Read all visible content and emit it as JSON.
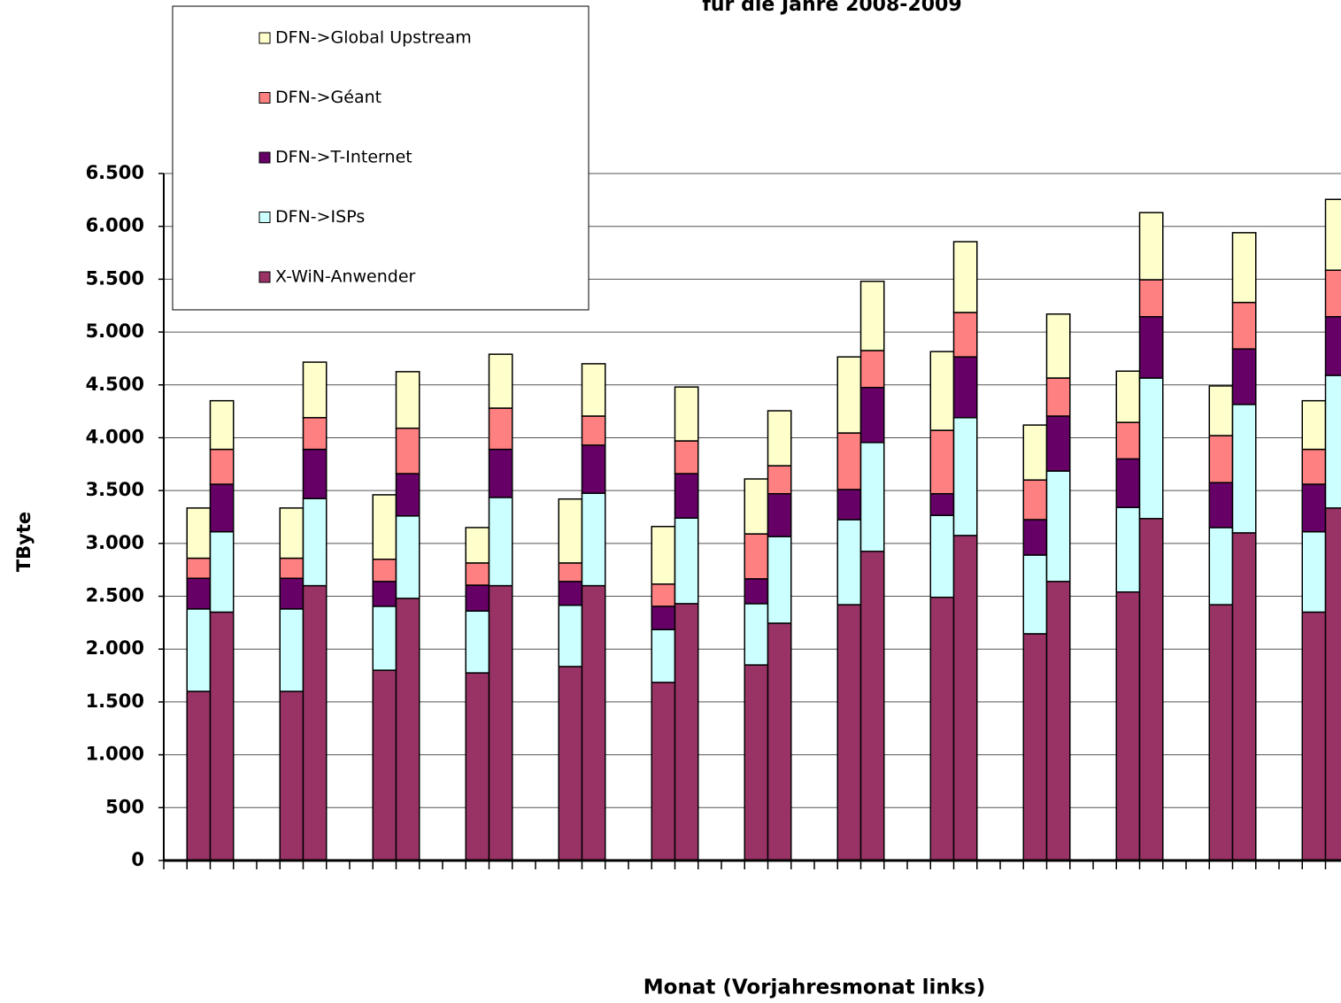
{
  "chart_data": {
    "type": "stacked_bar",
    "title": "für die Jahre 2008-2009",
    "y_label": "TByte",
    "x_label": "Monat (Vorjahresmonat links)",
    "categories": [
      null,
      null,
      null,
      null,
      null,
      null,
      null,
      null,
      null,
      null,
      null,
      null,
      null,
      null,
      null,
      null,
      null,
      null,
      null,
      null,
      null,
      null,
      null,
      null,
      null,
      null
    ],
    "series": [
      {
        "name": "X-WiN-Anwender",
        "color": "#993366",
        "values": [
          1600,
          2350,
          1600,
          2600,
          1800,
          2480,
          1775,
          2600,
          1835,
          2600,
          1685,
          2430,
          1850,
          2245,
          2420,
          2925,
          2490,
          3075,
          2145,
          2640,
          2540,
          3235,
          2420,
          3100,
          2350,
          3335
        ]
      },
      {
        "name": "DFN->ISPs",
        "color": "#ccffff",
        "values": [
          780,
          760,
          780,
          825,
          605,
          780,
          585,
          835,
          580,
          875,
          500,
          810,
          580,
          820,
          805,
          1030,
          775,
          1115,
          745,
          1045,
          800,
          1330,
          730,
          1215,
          760,
          1255
        ]
      },
      {
        "name": "DFN->T-Internet",
        "color": "#660066",
        "values": [
          290,
          450,
          290,
          465,
          235,
          400,
          245,
          455,
          225,
          455,
          220,
          420,
          235,
          405,
          285,
          520,
          205,
          575,
          335,
          520,
          460,
          580,
          425,
          525,
          450,
          555
        ]
      },
      {
        "name": "DFN->Géant",
        "color": "#ff8080",
        "values": [
          190,
          330,
          190,
          300,
          210,
          430,
          210,
          390,
          175,
          275,
          210,
          310,
          425,
          265,
          535,
          350,
          600,
          420,
          375,
          360,
          345,
          350,
          445,
          440,
          330,
          440
        ]
      },
      {
        "name": "DFN->Global Upstream",
        "color": "#ffffcc",
        "values": [
          475,
          460,
          475,
          525,
          610,
          535,
          335,
          510,
          605,
          495,
          545,
          510,
          520,
          520,
          720,
          655,
          745,
          670,
          520,
          605,
          485,
          635,
          470,
          660,
          460,
          670
        ]
      }
    ],
    "ylim": [
      0,
      6500
    ],
    "yticks": [
      0,
      500,
      {
        "value": 1000,
        "label": "1.000"
      },
      {
        "value": 1500,
        "label": "1.500"
      },
      {
        "value": 2000,
        "label": "2.000"
      },
      {
        "value": 2500,
        "label": "2.500"
      },
      {
        "value": 3000,
        "label": "3.000"
      },
      {
        "value": 3500,
        "label": "3.500"
      },
      {
        "value": 4000,
        "label": "4.000"
      },
      {
        "value": 4500,
        "label": "4.500"
      },
      {
        "value": 5000,
        "label": "5.000"
      },
      {
        "value": 5500,
        "label": "5.500"
      },
      {
        "value": 6000,
        "label": "6.000"
      },
      {
        "value": 6500,
        "label": "6.500"
      }
    ],
    "grid": true,
    "legend": "top-left"
  }
}
